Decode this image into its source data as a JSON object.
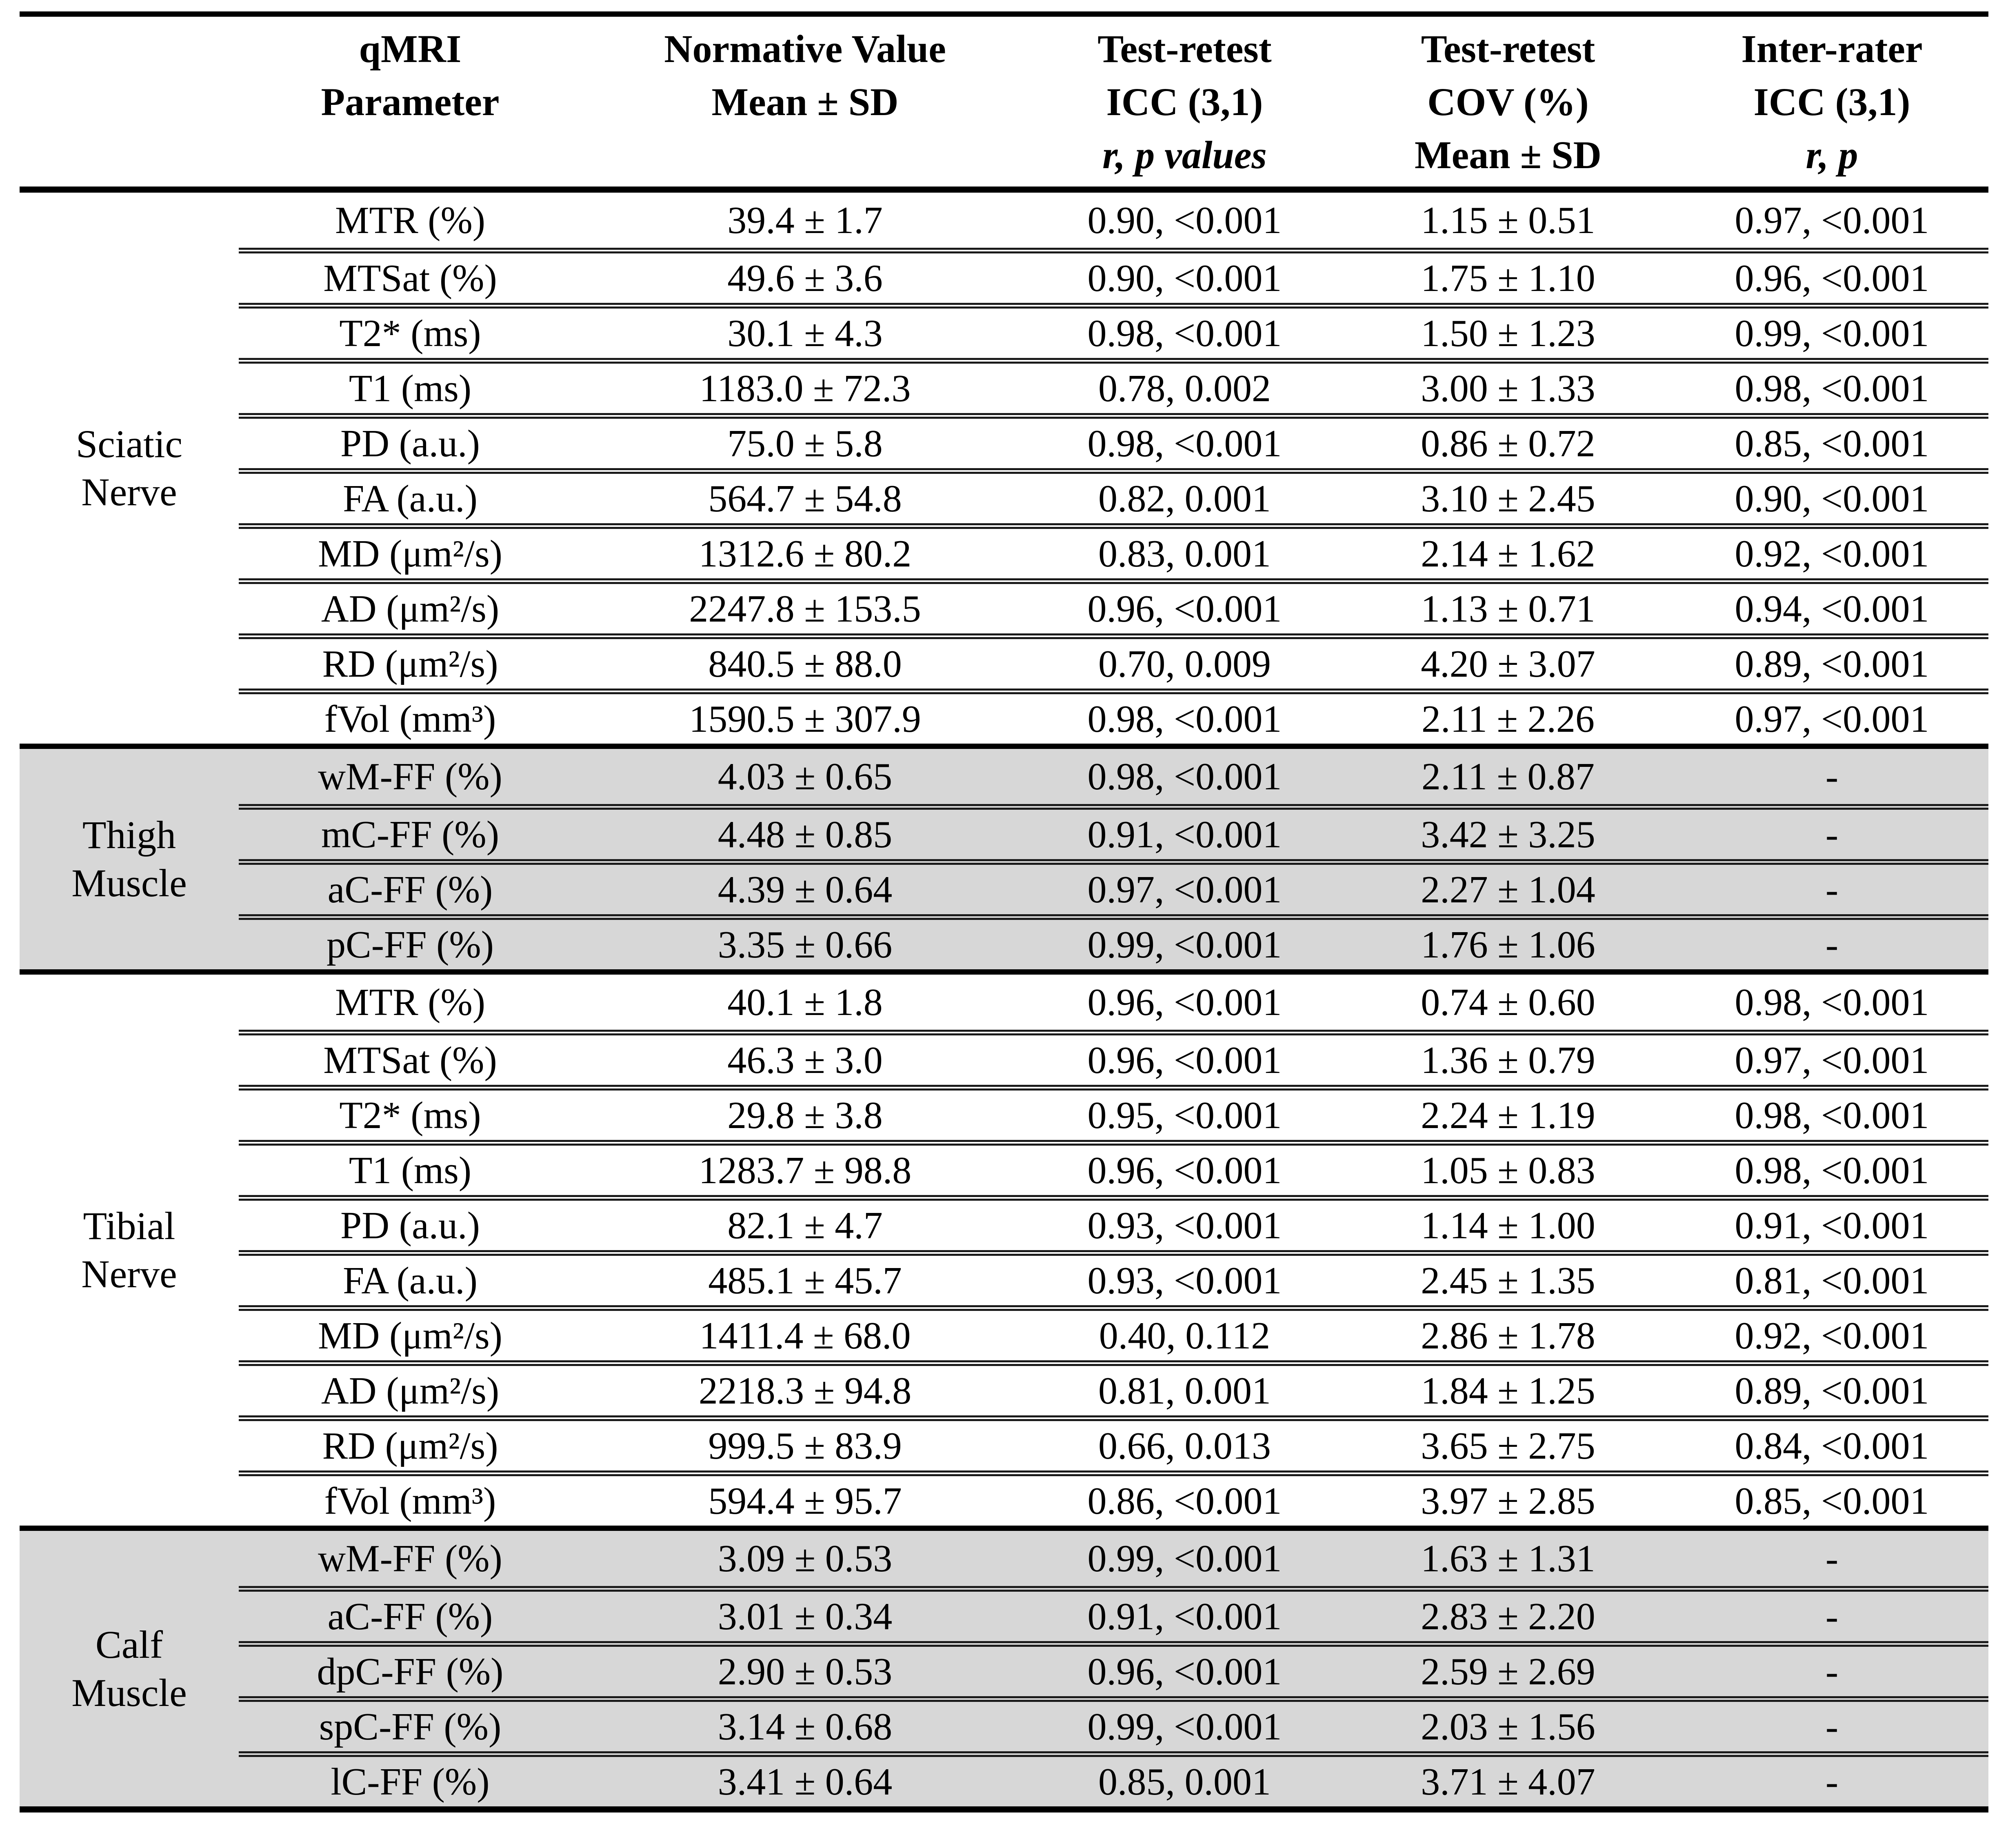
{
  "colors": {
    "section_shade": "#d7d7d7",
    "rule": "#000000",
    "text": "#000000",
    "background": "#ffffff"
  },
  "header": {
    "columns": [
      {
        "lines": []
      },
      {
        "lines": [
          "qMRI",
          "Parameter"
        ]
      },
      {
        "lines": [
          "Normative Value",
          "Mean ± SD"
        ]
      },
      {
        "lines": [
          "Test-retest",
          "ICC (3,1)",
          "r, p values"
        ]
      },
      {
        "lines": [
          "Test-retest",
          "COV (%)",
          "Mean ± SD"
        ]
      },
      {
        "lines": [
          "Inter-rater",
          "ICC (3,1)",
          "r, p"
        ]
      }
    ]
  },
  "table": {
    "sections": [
      {
        "group_lines": [
          "Sciatic",
          "Nerve"
        ],
        "shaded": false,
        "rows": [
          {
            "param": "MTR (%)",
            "normative": "39.4 ± 1.7",
            "icc": "0.90, <0.001",
            "cov": "1.15 ± 0.51",
            "inter": "0.97, <0.001"
          },
          {
            "param": "MTSat (%)",
            "normative": "49.6 ± 3.6",
            "icc": "0.90, <0.001",
            "cov": "1.75 ± 1.10",
            "inter": "0.96, <0.001"
          },
          {
            "param": "T2* (ms)",
            "normative": "30.1 ± 4.3",
            "icc": "0.98, <0.001",
            "cov": "1.50 ± 1.23",
            "inter": "0.99, <0.001"
          },
          {
            "param": "T1 (ms)",
            "normative": "1183.0 ± 72.3",
            "icc": "0.78, 0.002",
            "cov": "3.00 ± 1.33",
            "inter": "0.98, <0.001"
          },
          {
            "param": "PD (a.u.)",
            "normative": "75.0 ± 5.8",
            "icc": "0.98, <0.001",
            "cov": "0.86 ± 0.72",
            "inter": "0.85, <0.001"
          },
          {
            "param": "FA (a.u.)",
            "normative": "564.7 ± 54.8",
            "icc": "0.82, 0.001",
            "cov": "3.10 ± 2.45",
            "inter": "0.90, <0.001"
          },
          {
            "param": "MD (μm²/s)",
            "normative": "1312.6 ± 80.2",
            "icc": "0.83, 0.001",
            "cov": "2.14 ± 1.62",
            "inter": "0.92, <0.001"
          },
          {
            "param": "AD (μm²/s)",
            "normative": "2247.8 ± 153.5",
            "icc": "0.96, <0.001",
            "cov": "1.13 ± 0.71",
            "inter": "0.94, <0.001"
          },
          {
            "param": "RD (μm²/s)",
            "normative": "840.5 ± 88.0",
            "icc": "0.70, 0.009",
            "cov": "4.20 ± 3.07",
            "inter": "0.89, <0.001"
          },
          {
            "param": "fVol (mm³)",
            "normative": "1590.5 ± 307.9",
            "icc": "0.98, <0.001",
            "cov": "2.11 ± 2.26",
            "inter": "0.97, <0.001"
          }
        ]
      },
      {
        "group_lines": [
          "Thigh",
          "Muscle"
        ],
        "shaded": true,
        "rows": [
          {
            "param": "wM-FF (%)",
            "normative": "4.03 ± 0.65",
            "icc": "0.98, <0.001",
            "cov": "2.11 ± 0.87",
            "inter": "-"
          },
          {
            "param": "mC-FF (%)",
            "normative": "4.48 ± 0.85",
            "icc": "0.91, <0.001",
            "cov": "3.42 ± 3.25",
            "inter": "-"
          },
          {
            "param": "aC-FF (%)",
            "normative": "4.39 ± 0.64",
            "icc": "0.97, <0.001",
            "cov": "2.27 ± 1.04",
            "inter": "-"
          },
          {
            "param": "pC-FF (%)",
            "normative": "3.35 ± 0.66",
            "icc": "0.99, <0.001",
            "cov": "1.76 ± 1.06",
            "inter": "-"
          }
        ]
      },
      {
        "group_lines": [
          "Tibial",
          "Nerve"
        ],
        "shaded": false,
        "rows": [
          {
            "param": "MTR (%)",
            "normative": "40.1 ± 1.8",
            "icc": "0.96, <0.001",
            "cov": "0.74 ± 0.60",
            "inter": "0.98, <0.001"
          },
          {
            "param": "MTSat (%)",
            "normative": "46.3 ± 3.0",
            "icc": "0.96, <0.001",
            "cov": "1.36 ± 0.79",
            "inter": "0.97, <0.001"
          },
          {
            "param": "T2* (ms)",
            "normative": "29.8 ± 3.8",
            "icc": "0.95, <0.001",
            "cov": "2.24 ± 1.19",
            "inter": "0.98, <0.001"
          },
          {
            "param": "T1 (ms)",
            "normative": "1283.7 ± 98.8",
            "icc": "0.96, <0.001",
            "cov": "1.05 ± 0.83",
            "inter": "0.98, <0.001"
          },
          {
            "param": "PD (a.u.)",
            "normative": "82.1 ± 4.7",
            "icc": "0.93, <0.001",
            "cov": "1.14 ± 1.00",
            "inter": "0.91, <0.001"
          },
          {
            "param": "FA (a.u.)",
            "normative": "485.1 ± 45.7",
            "icc": "0.93, <0.001",
            "cov": "2.45 ± 1.35",
            "inter": "0.81, <0.001"
          },
          {
            "param": "MD (μm²/s)",
            "normative": "1411.4 ± 68.0",
            "icc": "0.40, 0.112",
            "cov": "2.86 ± 1.78",
            "inter": "0.92, <0.001"
          },
          {
            "param": "AD (μm²/s)",
            "normative": "2218.3 ± 94.8",
            "icc": "0.81, 0.001",
            "cov": "1.84 ± 1.25",
            "inter": "0.89, <0.001"
          },
          {
            "param": "RD (μm²/s)",
            "normative": "999.5 ± 83.9",
            "icc": "0.66, 0.013",
            "cov": "3.65 ± 2.75",
            "inter": "0.84, <0.001"
          },
          {
            "param": "fVol (mm³)",
            "normative": "594.4 ± 95.7",
            "icc": "0.86, <0.001",
            "cov": "3.97 ± 2.85",
            "inter": "0.85, <0.001"
          }
        ]
      },
      {
        "group_lines": [
          "Calf",
          "Muscle"
        ],
        "shaded": true,
        "rows": [
          {
            "param": "wM-FF (%)",
            "normative": "3.09 ± 0.53",
            "icc": "0.99, <0.001",
            "cov": "1.63 ± 1.31",
            "inter": "-"
          },
          {
            "param": "aC-FF (%)",
            "normative": "3.01 ± 0.34",
            "icc": "0.91, <0.001",
            "cov": "2.83 ± 2.20",
            "inter": "-"
          },
          {
            "param": "dpC-FF (%)",
            "normative": "2.90 ± 0.53",
            "icc": "0.96, <0.001",
            "cov": "2.59 ± 2.69",
            "inter": "-"
          },
          {
            "param": "spC-FF (%)",
            "normative": "3.14 ± 0.68",
            "icc": "0.99, <0.001",
            "cov": "2.03 ± 1.56",
            "inter": "-"
          },
          {
            "param": "lC-FF (%)",
            "normative": "3.41 ± 0.64",
            "icc": "0.85, 0.001",
            "cov": "3.71 ± 4.07",
            "inter": "-"
          }
        ]
      }
    ]
  }
}
